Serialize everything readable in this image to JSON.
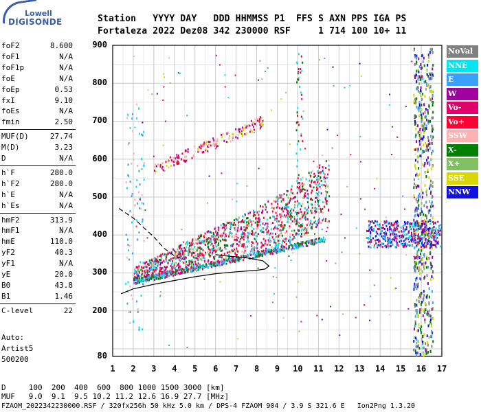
{
  "logo": {
    "top": "Lowell",
    "main": "DIGISONDE"
  },
  "header": {
    "line1": "Station   YYYY DAY   DDD HHMMSS P1  FFS S AXN PPS IGA PS",
    "line2": "Fortaleza 2022 Dez08 342 230000 RSF     1 714 100 10+ 11"
  },
  "params": [
    {
      "k": "foF2",
      "v": "8.600"
    },
    {
      "k": "foF1",
      "v": "N/A"
    },
    {
      "k": "foF1p",
      "v": "N/A"
    },
    {
      "k": "foE",
      "v": "N/A"
    },
    {
      "k": "foEp",
      "v": "0.53"
    },
    {
      "k": "fxI",
      "v": "9.10"
    },
    {
      "k": "foEs",
      "v": "N/A"
    },
    {
      "k": "fmin",
      "v": "2.50"
    },
    {
      "k": "MUF(D)",
      "v": "27.74"
    },
    {
      "k": "M(D)",
      "v": "3.23"
    },
    {
      "k": "D",
      "v": "N/A"
    },
    {
      "k": "h`F",
      "v": "280.0"
    },
    {
      "k": "h`F2",
      "v": "280.0"
    },
    {
      "k": "h`E",
      "v": "N/A"
    },
    {
      "k": "h`Es",
      "v": "N/A"
    },
    {
      "k": "hmF2",
      "v": "313.9"
    },
    {
      "k": "hmF1",
      "v": "N/A"
    },
    {
      "k": "hmE",
      "v": "110.0"
    },
    {
      "k": "yF2",
      "v": "40.3"
    },
    {
      "k": "yF1",
      "v": "N/A"
    },
    {
      "k": "yE",
      "v": "20.0"
    },
    {
      "k": "B0",
      "v": "43.8"
    },
    {
      "k": "B1",
      "v": "1.46"
    },
    {
      "k": "C-level",
      "v": "22"
    }
  ],
  "auto": {
    "line1": "Auto:",
    "line2": "Artist5",
    "line3": "500200"
  },
  "legend": [
    {
      "label": "NoVal",
      "color": "#808080"
    },
    {
      "label": "NNE",
      "color": "#00e5ee"
    },
    {
      "label": "E",
      "color": "#3aa0ff"
    },
    {
      "label": "W",
      "color": "#a000a0"
    },
    {
      "label": "Vo-",
      "color": "#e0006a"
    },
    {
      "label": "Vo+",
      "color": "#ff0033"
    },
    {
      "label": "SSW",
      "color": "#ffb0b0"
    },
    {
      "label": "X-",
      "color": "#007f00"
    },
    {
      "label": "X+",
      "color": "#80c060"
    },
    {
      "label": "SSE",
      "color": "#d8d800"
    },
    {
      "label": "NNW",
      "color": "#1010e0"
    }
  ],
  "chart_data": {
    "type": "scatter",
    "xlabel": "",
    "ylabel": "",
    "xlim": [
      1,
      17
    ],
    "ylim": [
      80,
      900
    ],
    "x_ticks": [
      "1",
      "2",
      "3",
      "4",
      "5",
      "6",
      "7",
      "8",
      "9",
      "10",
      "11",
      "12",
      "13",
      "14",
      "15",
      "16",
      "17"
    ],
    "y_ticks": [
      "900",
      "800",
      "700",
      "600",
      "500",
      "400",
      "300",
      "200",
      "80"
    ],
    "grid": true,
    "trace_lines": {
      "profile_lower": [
        [
          1.4,
          245
        ],
        [
          2,
          258
        ],
        [
          3,
          270
        ],
        [
          4,
          280
        ],
        [
          5,
          290
        ],
        [
          6,
          298
        ],
        [
          7,
          303
        ],
        [
          8,
          307
        ],
        [
          8.4,
          310
        ],
        [
          8.6,
          318
        ],
        [
          8.3,
          332
        ],
        [
          7.5,
          340
        ],
        [
          6.5,
          345
        ],
        [
          6,
          348
        ]
      ],
      "profile_upper": [
        [
          1.3,
          470
        ],
        [
          2,
          445
        ],
        [
          2.5,
          420
        ],
        [
          3,
          395
        ],
        [
          3.5,
          365
        ],
        [
          4,
          345
        ],
        [
          4.5,
          335
        ]
      ]
    }
  },
  "footer": {
    "line1": "D     100  200  400  600  800 1000 1500 3000 [km]",
    "line2": "MUF   9.0  9.1  9.5 10.2 11.2 12.6 16.9 27.7 [MHz]",
    "line3": "FZAOM_2022342230000.RSF / 320fx256h 50 kHz 5.0 km / DPS-4 FZAOM 904 / 3.9 S 321.6 E   Ion2Png 1.3.20"
  }
}
